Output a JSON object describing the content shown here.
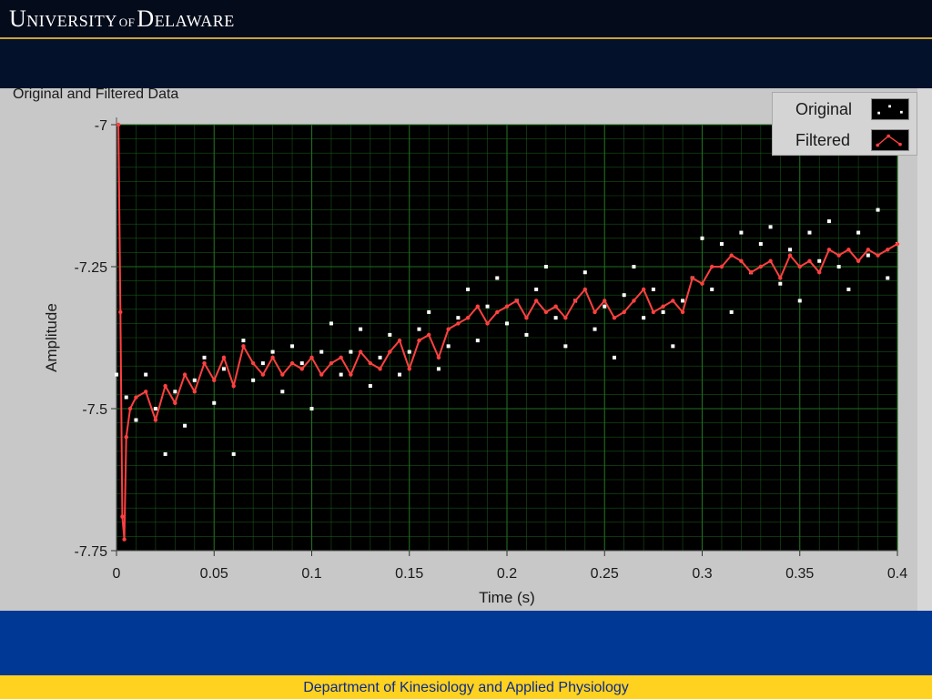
{
  "header": {
    "logo_text": "UNIVERSITY OF DELAWARE"
  },
  "footer": {
    "text": "Department of Kinesiology and Applied Physiology"
  },
  "colors": {
    "header_bg": "#040b1a",
    "accent_gold": "#c9a335",
    "band_blue": "#003896",
    "footer_yellow": "#ffd21f",
    "plot_bg": "#000000",
    "grid": "#1f6e1f",
    "original": "#ffffff",
    "filtered": "#ff4040"
  },
  "chart_data": {
    "type": "scatter",
    "title": "Original and Filtered Data",
    "xlabel": "Time (s)",
    "ylabel": "Amplitude",
    "xlim": [
      0,
      0.4
    ],
    "ylim": [
      -7.75,
      -7
    ],
    "xticks": [
      "0",
      "0.05",
      "0.1",
      "0.15",
      "0.2",
      "0.25",
      "0.3",
      "0.35",
      "0.4"
    ],
    "yticks": [
      "-7",
      "-7.25",
      "-7.5",
      "-7.75"
    ],
    "grid": true,
    "legend": {
      "position": "top-right",
      "entries": [
        "Original",
        "Filtered"
      ]
    },
    "series": [
      {
        "name": "Original",
        "style": "points",
        "x": [
          0.0,
          0.005,
          0.01,
          0.015,
          0.02,
          0.025,
          0.03,
          0.035,
          0.04,
          0.045,
          0.05,
          0.055,
          0.06,
          0.065,
          0.07,
          0.075,
          0.08,
          0.085,
          0.09,
          0.095,
          0.1,
          0.105,
          0.11,
          0.115,
          0.12,
          0.125,
          0.13,
          0.135,
          0.14,
          0.145,
          0.15,
          0.155,
          0.16,
          0.165,
          0.17,
          0.175,
          0.18,
          0.185,
          0.19,
          0.195,
          0.2,
          0.205,
          0.21,
          0.215,
          0.22,
          0.225,
          0.23,
          0.235,
          0.24,
          0.245,
          0.25,
          0.255,
          0.26,
          0.265,
          0.27,
          0.275,
          0.28,
          0.285,
          0.29,
          0.295,
          0.3,
          0.305,
          0.31,
          0.315,
          0.32,
          0.325,
          0.33,
          0.335,
          0.34,
          0.345,
          0.35,
          0.355,
          0.36,
          0.365,
          0.37,
          0.375,
          0.38,
          0.385,
          0.39,
          0.395,
          0.4
        ],
        "y": [
          -7.44,
          -7.48,
          -7.52,
          -7.44,
          -7.5,
          -7.58,
          -7.47,
          -7.53,
          -7.45,
          -7.41,
          -7.49,
          -7.43,
          -7.58,
          -7.38,
          -7.45,
          -7.42,
          -7.4,
          -7.47,
          -7.39,
          -7.42,
          -7.5,
          -7.4,
          -7.35,
          -7.44,
          -7.4,
          -7.36,
          -7.46,
          -7.41,
          -7.37,
          -7.44,
          -7.4,
          -7.36,
          -7.33,
          -7.43,
          -7.39,
          -7.34,
          -7.29,
          -7.38,
          -7.32,
          -7.27,
          -7.35,
          -7.31,
          -7.37,
          -7.29,
          -7.25,
          -7.34,
          -7.39,
          -7.31,
          -7.26,
          -7.36,
          -7.32,
          -7.41,
          -7.3,
          -7.25,
          -7.34,
          -7.29,
          -7.33,
          -7.39,
          -7.31,
          -7.27,
          -7.2,
          -7.29,
          -7.21,
          -7.33,
          -7.19,
          -7.26,
          -7.21,
          -7.18,
          -7.28,
          -7.22,
          -7.31,
          -7.19,
          -7.24,
          -7.17,
          -7.25,
          -7.29,
          -7.19,
          -7.23,
          -7.15,
          -7.27,
          -7.21
        ]
      },
      {
        "name": "Filtered",
        "style": "line+markers",
        "x": [
          0.001,
          0.002,
          0.003,
          0.004,
          0.005,
          0.007,
          0.01,
          0.015,
          0.02,
          0.025,
          0.03,
          0.035,
          0.04,
          0.045,
          0.05,
          0.055,
          0.06,
          0.065,
          0.07,
          0.075,
          0.08,
          0.085,
          0.09,
          0.095,
          0.1,
          0.105,
          0.11,
          0.115,
          0.12,
          0.125,
          0.13,
          0.135,
          0.14,
          0.145,
          0.15,
          0.155,
          0.16,
          0.165,
          0.17,
          0.175,
          0.18,
          0.185,
          0.19,
          0.195,
          0.2,
          0.205,
          0.21,
          0.215,
          0.22,
          0.225,
          0.23,
          0.235,
          0.24,
          0.245,
          0.25,
          0.255,
          0.26,
          0.265,
          0.27,
          0.275,
          0.28,
          0.285,
          0.29,
          0.295,
          0.3,
          0.305,
          0.31,
          0.315,
          0.32,
          0.325,
          0.33,
          0.335,
          0.34,
          0.345,
          0.35,
          0.355,
          0.36,
          0.365,
          0.37,
          0.375,
          0.38,
          0.385,
          0.39,
          0.395,
          0.4
        ],
        "y": [
          -7.0,
          -7.33,
          -7.69,
          -7.73,
          -7.55,
          -7.5,
          -7.48,
          -7.47,
          -7.52,
          -7.46,
          -7.49,
          -7.44,
          -7.47,
          -7.42,
          -7.45,
          -7.41,
          -7.46,
          -7.39,
          -7.42,
          -7.44,
          -7.41,
          -7.44,
          -7.42,
          -7.43,
          -7.41,
          -7.44,
          -7.42,
          -7.41,
          -7.44,
          -7.4,
          -7.42,
          -7.43,
          -7.4,
          -7.38,
          -7.43,
          -7.38,
          -7.37,
          -7.41,
          -7.36,
          -7.35,
          -7.34,
          -7.32,
          -7.35,
          -7.33,
          -7.32,
          -7.31,
          -7.34,
          -7.31,
          -7.33,
          -7.32,
          -7.34,
          -7.31,
          -7.29,
          -7.33,
          -7.31,
          -7.34,
          -7.33,
          -7.31,
          -7.29,
          -7.33,
          -7.32,
          -7.31,
          -7.33,
          -7.27,
          -7.28,
          -7.25,
          -7.25,
          -7.23,
          -7.24,
          -7.26,
          -7.25,
          -7.24,
          -7.27,
          -7.23,
          -7.25,
          -7.24,
          -7.26,
          -7.22,
          -7.23,
          -7.22,
          -7.24,
          -7.22,
          -7.23,
          -7.22,
          -7.21
        ]
      }
    ]
  }
}
